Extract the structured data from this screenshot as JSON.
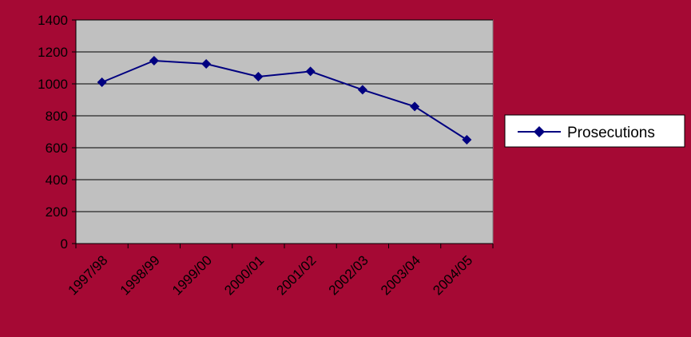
{
  "chart_data": {
    "type": "line",
    "categories": [
      "1997/98",
      "1998/99",
      "1999/00",
      "2000/01",
      "2001/02",
      "2002/03",
      "2003/04",
      "2004/05"
    ],
    "series": [
      {
        "name": "Prosecutions",
        "values": [
          1010,
          1145,
          1125,
          1045,
          1078,
          963,
          858,
          650
        ]
      }
    ],
    "ylim": [
      0,
      1400
    ],
    "yticks": [
      0,
      200,
      400,
      600,
      800,
      1000,
      1200,
      1400
    ],
    "grid": true,
    "legend": "right",
    "colors": {
      "background": "#A50934",
      "plot_area": "#C0C0C0",
      "series": "#000080",
      "grid": "#000000"
    }
  }
}
